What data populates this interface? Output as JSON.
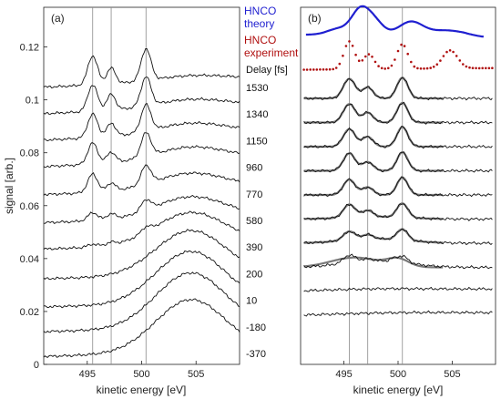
{
  "figure": {
    "panel_a_label": "(a)",
    "panel_b_label": "(b)",
    "ylabel": "signal [arb.]",
    "xlabel": "kinetic energy [eV]",
    "delay_header": "Delay [fs]",
    "legend_theory_line1": "HNCO",
    "legend_theory_line2": "theory",
    "legend_exp_line1": "HNCO",
    "legend_exp_line2": "experiment"
  },
  "colors": {
    "theory": "#1f1fd0",
    "experiment": "#b01010",
    "trace": "#111111",
    "fit": "#7a7a7a",
    "vline": "#8a8a8a"
  },
  "chart_data": [
    {
      "type": "line",
      "panel": "(a)",
      "title": "",
      "xlabel": "kinetic energy [eV]",
      "ylabel": "signal [arb.]",
      "xlim": [
        491,
        509
      ],
      "ylim": [
        0,
        0.135
      ],
      "x_ticks": [
        495,
        500,
        505
      ],
      "y_ticks": [
        0,
        0.02,
        0.04,
        0.06,
        0.08,
        0.1,
        0.12
      ],
      "reference_lines_x": [
        495.5,
        497.2,
        500.4
      ],
      "delay_labels": [
        "1530",
        "1340",
        "1150",
        "960",
        "770",
        "580",
        "390",
        "200",
        "10",
        "-180",
        "-370"
      ],
      "offsets": [
        0.1,
        0.09,
        0.08,
        0.07,
        0.06,
        0.05,
        0.04,
        0.03,
        0.02,
        0.01,
        0.0
      ],
      "baseline_level": [
        0.008,
        0.008,
        0.008,
        0.008,
        0.007,
        0.006,
        0.006,
        0.004,
        0.003,
        0.004,
        0.005
      ],
      "peak_heights": [
        [
          0.011,
          0.006,
          0.012
        ],
        [
          0.01,
          0.006,
          0.011
        ],
        [
          0.009,
          0.005,
          0.01
        ],
        [
          0.008,
          0.004,
          0.009
        ],
        [
          0.007,
          0.003,
          0.007
        ],
        [
          0.003,
          0.002,
          0.004
        ],
        [
          0.001,
          0.001,
          0.002
        ],
        [
          0,
          0,
          0
        ],
        [
          0,
          0,
          0
        ],
        [
          0,
          0,
          0
        ],
        [
          0,
          0,
          0
        ]
      ],
      "broad_heights": [
        0.002,
        0.003,
        0.004,
        0.005,
        0.006,
        0.008,
        0.012,
        0.017,
        0.02,
        0.021,
        0.02
      ]
    },
    {
      "type": "line",
      "panel": "(b)",
      "title": "",
      "xlabel": "kinetic energy [eV]",
      "xlim": [
        491,
        509
      ],
      "ylim": [
        0,
        1
      ],
      "x_ticks": [
        495,
        500,
        505
      ],
      "reference_lines_x": [
        495.5,
        497.2,
        500.4
      ],
      "series": [
        {
          "name": "HNCO theory"
        },
        {
          "name": "HNCO experiment"
        }
      ]
    }
  ]
}
